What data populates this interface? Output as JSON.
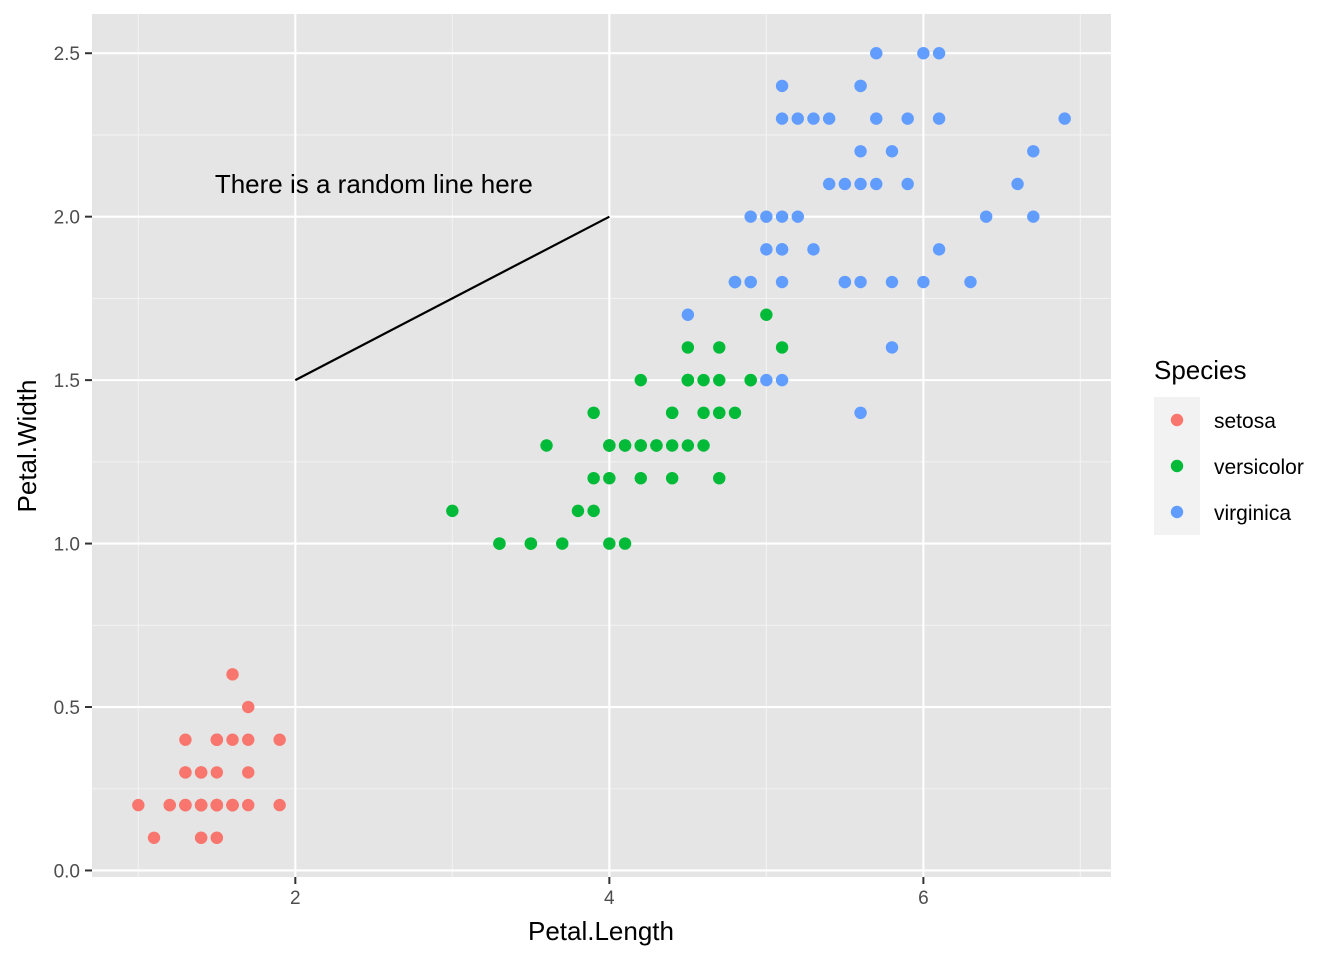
{
  "chart_data": {
    "type": "scatter",
    "xlabel": "Petal.Length",
    "ylabel": "Petal.Width",
    "xlim": [
      0.705,
      7.195
    ],
    "ylim": [
      -0.02,
      2.62
    ],
    "x_ticks": [
      2,
      4,
      6
    ],
    "x_tick_labels": [
      "2",
      "4",
      "6"
    ],
    "y_ticks": [
      0.0,
      0.5,
      1.0,
      1.5,
      2.0,
      2.5
    ],
    "y_tick_labels": [
      "0.0",
      "0.5",
      "1.0",
      "1.5",
      "2.0",
      "2.5"
    ],
    "grid": true,
    "panel_background": "#e5e5e5",
    "legend": {
      "title": "Species",
      "position": "right",
      "entries": [
        "setosa",
        "versicolor",
        "virginica"
      ]
    },
    "series": [
      {
        "name": "setosa",
        "color": "#f8766d",
        "points": [
          [
            1.4,
            0.2
          ],
          [
            1.4,
            0.2
          ],
          [
            1.3,
            0.2
          ],
          [
            1.5,
            0.2
          ],
          [
            1.4,
            0.2
          ],
          [
            1.7,
            0.4
          ],
          [
            1.4,
            0.3
          ],
          [
            1.5,
            0.2
          ],
          [
            1.4,
            0.2
          ],
          [
            1.5,
            0.1
          ],
          [
            1.5,
            0.2
          ],
          [
            1.6,
            0.2
          ],
          [
            1.4,
            0.1
          ],
          [
            1.1,
            0.1
          ],
          [
            1.2,
            0.2
          ],
          [
            1.5,
            0.4
          ],
          [
            1.3,
            0.4
          ],
          [
            1.4,
            0.3
          ],
          [
            1.7,
            0.3
          ],
          [
            1.5,
            0.3
          ],
          [
            1.7,
            0.2
          ],
          [
            1.5,
            0.4
          ],
          [
            1.0,
            0.2
          ],
          [
            1.7,
            0.5
          ],
          [
            1.9,
            0.2
          ],
          [
            1.6,
            0.2
          ],
          [
            1.6,
            0.4
          ],
          [
            1.5,
            0.2
          ],
          [
            1.4,
            0.2
          ],
          [
            1.6,
            0.2
          ],
          [
            1.6,
            0.2
          ],
          [
            1.5,
            0.4
          ],
          [
            1.5,
            0.1
          ],
          [
            1.4,
            0.2
          ],
          [
            1.5,
            0.2
          ],
          [
            1.2,
            0.2
          ],
          [
            1.3,
            0.2
          ],
          [
            1.4,
            0.1
          ],
          [
            1.3,
            0.2
          ],
          [
            1.5,
            0.2
          ],
          [
            1.3,
            0.3
          ],
          [
            1.3,
            0.3
          ],
          [
            1.3,
            0.2
          ],
          [
            1.6,
            0.6
          ],
          [
            1.9,
            0.4
          ],
          [
            1.4,
            0.3
          ],
          [
            1.6,
            0.2
          ],
          [
            1.4,
            0.2
          ],
          [
            1.5,
            0.2
          ],
          [
            1.4,
            0.2
          ]
        ]
      },
      {
        "name": "versicolor",
        "color": "#00ba38",
        "points": [
          [
            4.7,
            1.4
          ],
          [
            4.5,
            1.5
          ],
          [
            4.9,
            1.5
          ],
          [
            4.0,
            1.3
          ],
          [
            4.6,
            1.5
          ],
          [
            4.5,
            1.3
          ],
          [
            4.7,
            1.6
          ],
          [
            3.3,
            1.0
          ],
          [
            4.6,
            1.3
          ],
          [
            3.9,
            1.4
          ],
          [
            3.5,
            1.0
          ],
          [
            4.2,
            1.5
          ],
          [
            4.0,
            1.0
          ],
          [
            4.7,
            1.4
          ],
          [
            3.6,
            1.3
          ],
          [
            4.4,
            1.4
          ],
          [
            4.5,
            1.5
          ],
          [
            4.1,
            1.0
          ],
          [
            4.5,
            1.5
          ],
          [
            3.9,
            1.1
          ],
          [
            4.8,
            1.8
          ],
          [
            4.0,
            1.3
          ],
          [
            4.9,
            1.5
          ],
          [
            4.7,
            1.2
          ],
          [
            4.3,
            1.3
          ],
          [
            4.4,
            1.4
          ],
          [
            4.8,
            1.4
          ],
          [
            5.0,
            1.7
          ],
          [
            4.5,
            1.5
          ],
          [
            3.5,
            1.0
          ],
          [
            3.8,
            1.1
          ],
          [
            3.7,
            1.0
          ],
          [
            3.9,
            1.2
          ],
          [
            5.1,
            1.6
          ],
          [
            4.5,
            1.5
          ],
          [
            4.5,
            1.6
          ],
          [
            4.7,
            1.5
          ],
          [
            4.4,
            1.3
          ],
          [
            4.1,
            1.3
          ],
          [
            4.0,
            1.3
          ],
          [
            4.4,
            1.2
          ],
          [
            4.6,
            1.4
          ],
          [
            4.0,
            1.2
          ],
          [
            3.3,
            1.0
          ],
          [
            4.2,
            1.3
          ],
          [
            4.2,
            1.2
          ],
          [
            4.2,
            1.3
          ],
          [
            4.3,
            1.3
          ],
          [
            3.0,
            1.1
          ],
          [
            4.1,
            1.3
          ]
        ]
      },
      {
        "name": "virginica",
        "color": "#619cff",
        "points": [
          [
            6.0,
            2.5
          ],
          [
            5.1,
            1.9
          ],
          [
            5.9,
            2.1
          ],
          [
            5.6,
            1.8
          ],
          [
            5.8,
            2.2
          ],
          [
            6.6,
            2.1
          ],
          [
            4.5,
            1.7
          ],
          [
            6.3,
            1.8
          ],
          [
            5.8,
            1.8
          ],
          [
            6.1,
            2.5
          ],
          [
            5.1,
            2.0
          ],
          [
            5.3,
            1.9
          ],
          [
            5.5,
            2.1
          ],
          [
            5.0,
            2.0
          ],
          [
            5.1,
            2.4
          ],
          [
            5.3,
            2.3
          ],
          [
            5.5,
            1.8
          ],
          [
            6.7,
            2.2
          ],
          [
            6.9,
            2.3
          ],
          [
            5.0,
            1.5
          ],
          [
            5.7,
            2.3
          ],
          [
            4.9,
            2.0
          ],
          [
            6.7,
            2.0
          ],
          [
            4.9,
            1.8
          ],
          [
            5.7,
            2.1
          ],
          [
            6.0,
            1.8
          ],
          [
            4.8,
            1.8
          ],
          [
            4.9,
            1.8
          ],
          [
            5.6,
            2.1
          ],
          [
            5.8,
            1.6
          ],
          [
            6.1,
            1.9
          ],
          [
            6.4,
            2.0
          ],
          [
            5.6,
            2.2
          ],
          [
            5.1,
            1.5
          ],
          [
            5.6,
            1.4
          ],
          [
            6.1,
            2.3
          ],
          [
            5.6,
            2.4
          ],
          [
            5.5,
            1.8
          ],
          [
            4.8,
            1.8
          ],
          [
            5.4,
            2.1
          ],
          [
            5.6,
            2.4
          ],
          [
            5.1,
            2.3
          ],
          [
            5.1,
            1.9
          ],
          [
            5.9,
            2.3
          ],
          [
            5.7,
            2.5
          ],
          [
            5.2,
            2.3
          ],
          [
            5.0,
            1.9
          ],
          [
            5.2,
            2.0
          ],
          [
            5.4,
            2.3
          ],
          [
            5.1,
            1.8
          ]
        ]
      }
    ],
    "annotations": [
      {
        "type": "segment",
        "x": 2,
        "y": 1.5,
        "xend": 4,
        "yend": 2.0,
        "color": "#000000"
      },
      {
        "type": "text",
        "label": "There is a random line here",
        "x": 2.5,
        "y": 2.1
      }
    ]
  }
}
